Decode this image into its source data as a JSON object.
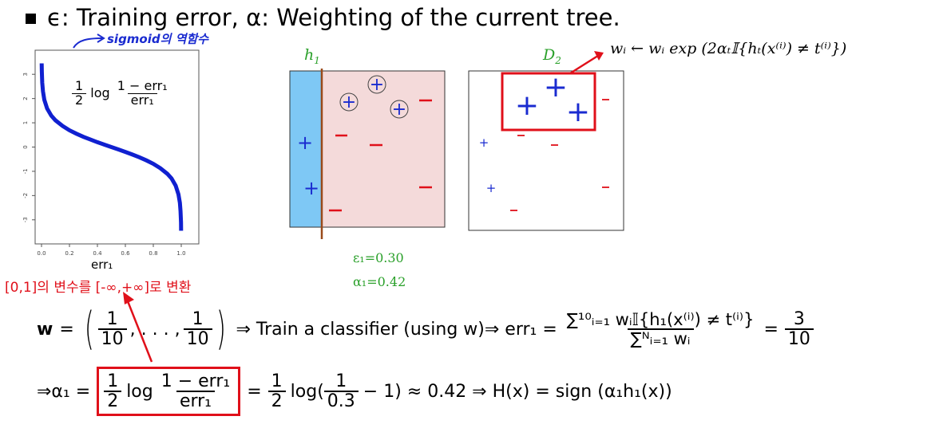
{
  "heading": {
    "bullet": "■",
    "text": "ϵ: Training error, α: Weighting of the current tree."
  },
  "annotations": {
    "sigmoid_note": "sigmoid의 역함수",
    "range_note": "[0,1]의 변수를 [-∞,+∞]로 변환",
    "weight_update": "wᵢ ← wᵢ exp (2αₜ𝕀{hₜ(x⁽ⁱ⁾) ≠ t⁽ⁱ⁾})"
  },
  "plot": {
    "formula_half_num": "1",
    "formula_half_den": "2",
    "formula_log": "log",
    "formula_num": "1 − err₁",
    "formula_den": "err₁",
    "xlabel": "err₁",
    "color": "#1020d0"
  },
  "chart_data": {
    "type": "line",
    "title": "",
    "xlabel": "err₁",
    "ylabel": "",
    "xlim": [
      0,
      1
    ],
    "ylim": [
      -3.5,
      3.5
    ],
    "x_ticks": [
      "0.0",
      "0.2",
      "0.4",
      "0.6",
      "0.8",
      "1.0"
    ],
    "y_ticks": [
      "3",
      "2",
      "1",
      "0",
      "-1",
      "-2",
      "-3"
    ],
    "series": [
      {
        "x": [
          0.001,
          0.002,
          0.005,
          0.01,
          0.02,
          0.04,
          0.07,
          0.1,
          0.15,
          0.2,
          0.25,
          0.3,
          0.35,
          0.4,
          0.45,
          0.5,
          0.55,
          0.6,
          0.65,
          0.7,
          0.75,
          0.8,
          0.85,
          0.9,
          0.93,
          0.96,
          0.98,
          0.99,
          0.995,
          0.998,
          0.999
        ],
        "y": [
          3.45,
          3.11,
          2.65,
          2.3,
          1.95,
          1.59,
          1.29,
          1.1,
          0.87,
          0.69,
          0.55,
          0.42,
          0.31,
          0.2,
          0.1,
          0.0,
          -0.1,
          -0.2,
          -0.31,
          -0.42,
          -0.55,
          -0.69,
          -0.87,
          -1.1,
          -1.29,
          -1.59,
          -1.95,
          -2.3,
          -2.65,
          -3.11,
          -3.45
        ]
      }
    ]
  },
  "panels": {
    "h1_label": "h",
    "h1_sub": "1",
    "d2_label": "D",
    "d2_sub": "2",
    "eps_line": "ε₁=0.30",
    "alpha_line": "α₁=0.42",
    "plus": "+",
    "minus": "−",
    "left_fill": "#7ec8f5",
    "right_fill": "#f4dada",
    "split_color": "#9a4a1a",
    "highlight_color": "#e0101a"
  },
  "equations": {
    "w_label": "w",
    "w_eq": "=",
    "w_num": "1",
    "w_den": "10",
    "w_dots": ", . . . ,",
    "train": "⇒ Train a classifier (using w)⇒ err₁ =",
    "err_num": "∑¹⁰ᵢ₌₁ wᵢ𝕀{h₁(x⁽ⁱ⁾) ≠ t⁽ⁱ⁾}",
    "err_den": "∑ᴺᵢ₌₁ wᵢ",
    "err_eq": "=",
    "err_val_num": "3",
    "err_val_den": "10",
    "alpha_prefix": "⇒α₁ =",
    "half_num": "1",
    "half_den": "2",
    "log": "log",
    "box_num": "1 − err₁",
    "box_den": "err₁",
    "mid_eq": "=",
    "rest1": "log(",
    "rest_num": "1",
    "rest_den": "0.3",
    "rest2": "− 1) ≈ 0.42 ⇒ H(x) = sign (α₁h₁(x))"
  }
}
